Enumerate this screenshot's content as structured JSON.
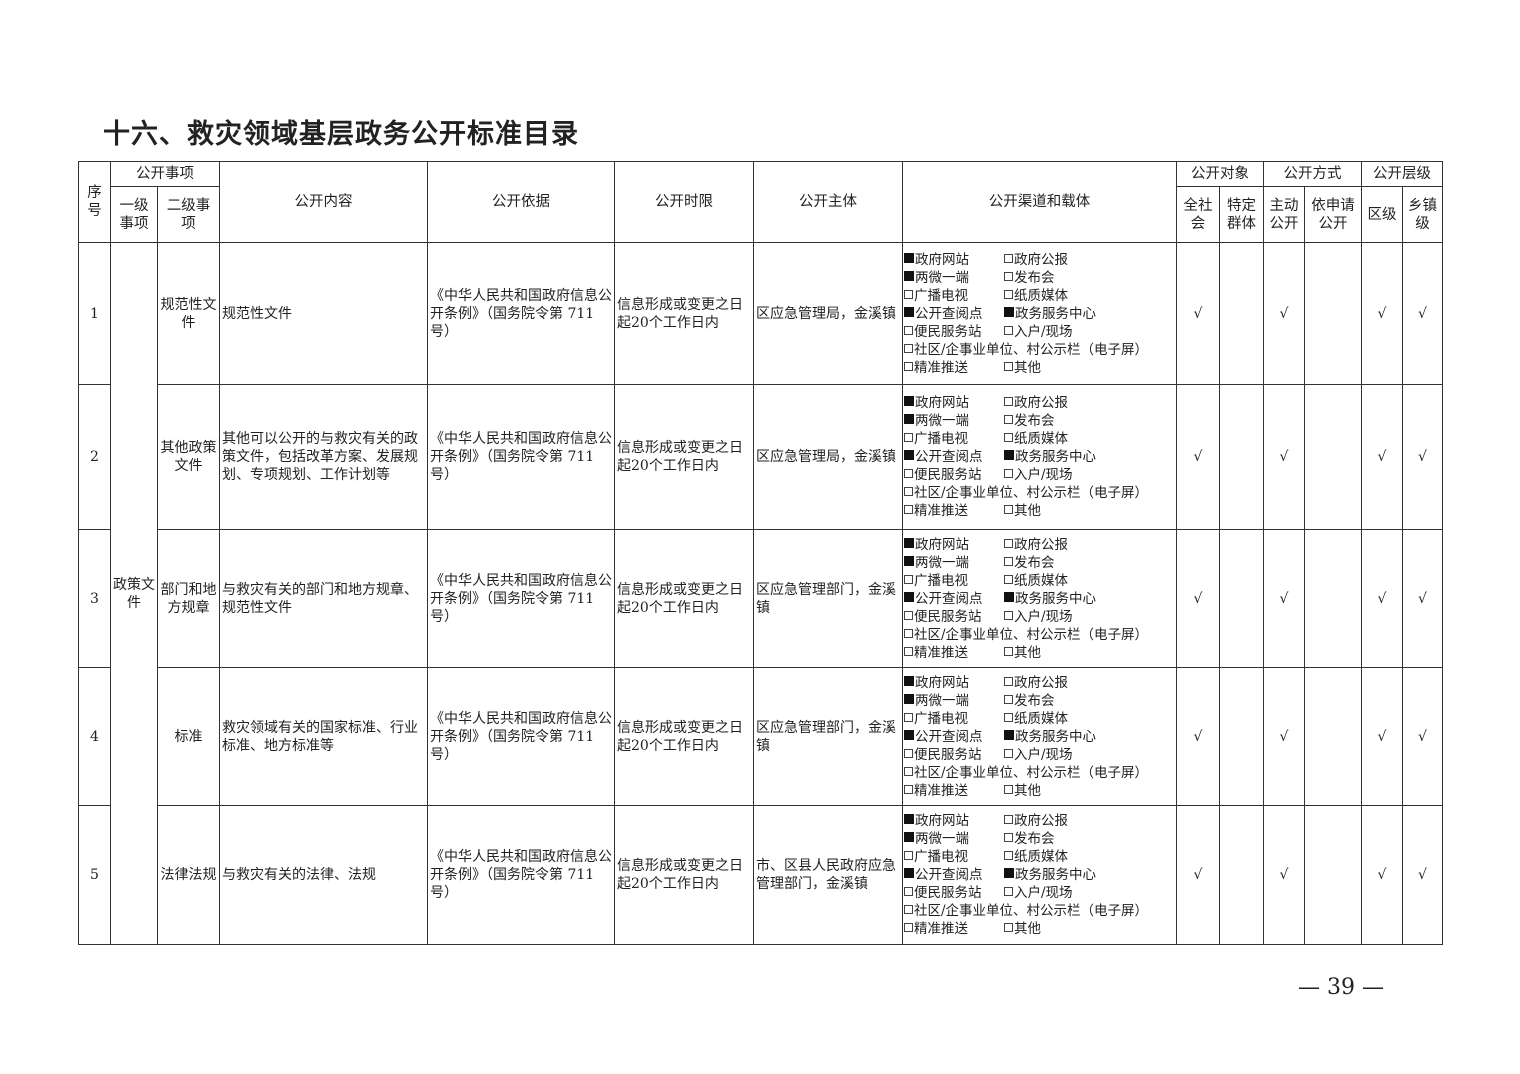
{
  "title": "十六、救灾领域基层政务公开标准目录",
  "page_number": "— 39 —",
  "headers": {
    "seq": "序号",
    "item": "公开事项",
    "level1": "一级事项",
    "level2": "二级事项",
    "content": "公开内容",
    "basis": "公开依据",
    "deadline": "公开时限",
    "subject": "公开主体",
    "channel": "公开渠道和载体",
    "target": "公开对象",
    "all_society": "全社会",
    "specific_group": "特定群体",
    "method": "公开方式",
    "active": "主动公开",
    "on_request": "依申请公开",
    "tier": "公开层级",
    "district": "区级",
    "township": "乡镇级"
  },
  "level1_merged": "政策文件",
  "rows": [
    {
      "seq": "1",
      "level2": "规范性文件",
      "content": "规范性文件",
      "basis": "《中华人民共和国政府信息公开条例》（国务院令第 711 号）",
      "deadline": "信息形成或变更之日起20个工作日内",
      "subject": "区应急管理局，金溪镇",
      "all_society": "√",
      "specific_group": "",
      "active": "√",
      "on_request": "",
      "district": "√",
      "township": "√"
    },
    {
      "seq": "2",
      "level2": "其他政策文件",
      "content": "其他可以公开的与救灾有关的政策文件，包括改革方案、发展规划、专项规划、工作计划等",
      "basis": "《中华人民共和国政府信息公开条例》（国务院令第 711 号）",
      "deadline": "信息形成或变更之日起20个工作日内",
      "subject": "区应急管理局，金溪镇",
      "all_society": "√",
      "specific_group": "",
      "active": "√",
      "on_request": "",
      "district": "√",
      "township": "√"
    },
    {
      "seq": "3",
      "level2": "部门和地方规章",
      "content": "与救灾有关的部门和地方规章、规范性文件",
      "basis": "《中华人民共和国政府信息公开条例》（国务院令第 711 号）",
      "deadline": "信息形成或变更之日起20个工作日内",
      "subject": "区应急管理部门，金溪镇",
      "all_society": "√",
      "specific_group": "",
      "active": "√",
      "on_request": "",
      "district": "√",
      "township": "√"
    },
    {
      "seq": "4",
      "level2": "标准",
      "content": "救灾领域有关的国家标准、行业标准、地方标准等",
      "basis": "《中华人民共和国政府信息公开条例》（国务院令第 711 号）",
      "deadline": "信息形成或变更之日起20个工作日内",
      "subject": "区应急管理部门，金溪镇",
      "all_society": "√",
      "specific_group": "",
      "active": "√",
      "on_request": "",
      "district": "√",
      "township": "√"
    },
    {
      "seq": "5",
      "level2": "法律法规",
      "content": "与救灾有关的法律、法规",
      "basis": "《中华人民共和国政府信息公开条例》（国务院令第 711 号）",
      "deadline": "信息形成或变更之日起20个工作日内",
      "subject": "市、区县人民政府应急管理部门，金溪镇",
      "all_society": "√",
      "specific_group": "",
      "active": "√",
      "on_request": "",
      "district": "√",
      "township": "√"
    }
  ],
  "channels": [
    [
      {
        "label": "政府网站",
        "checked": true
      },
      {
        "label": "政府公报",
        "checked": false
      }
    ],
    [
      {
        "label": "两微一端",
        "checked": true
      },
      {
        "label": "发布会",
        "checked": false
      }
    ],
    [
      {
        "label": "广播电视",
        "checked": false
      },
      {
        "label": "纸质媒体",
        "checked": false
      }
    ],
    [
      {
        "label": "公开查阅点",
        "checked": true
      },
      {
        "label": "政务服务中心",
        "checked": true
      }
    ],
    [
      {
        "label": "便民服务站",
        "checked": false
      },
      {
        "label": "入户/现场",
        "checked": false
      }
    ],
    [
      {
        "label": "社区/企事业单位、村公示栏（电子屏）",
        "checked": false
      }
    ],
    [
      {
        "label": "精准推送",
        "checked": false
      },
      {
        "label": "其他",
        "checked": false
      }
    ]
  ]
}
